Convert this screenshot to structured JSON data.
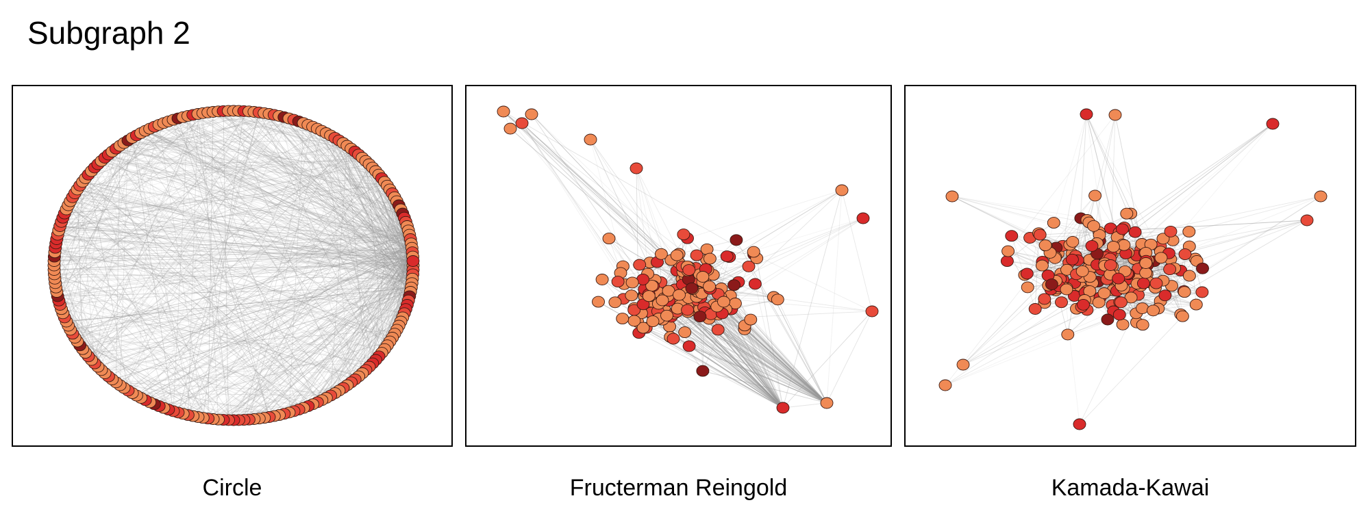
{
  "title": "Subgraph 2",
  "panels": [
    {
      "id": "circle",
      "caption": "Circle"
    },
    {
      "id": "fr",
      "caption": "Fructerman Reingold"
    },
    {
      "id": "kk",
      "caption": "Kamada-Kawai"
    }
  ],
  "colors": {
    "node_light": "#f08a55",
    "node_mid": "#e84b3a",
    "node_red": "#d92b2b",
    "node_dark": "#8b1a1a",
    "edge": "#999999",
    "frame": "#000000"
  }
}
